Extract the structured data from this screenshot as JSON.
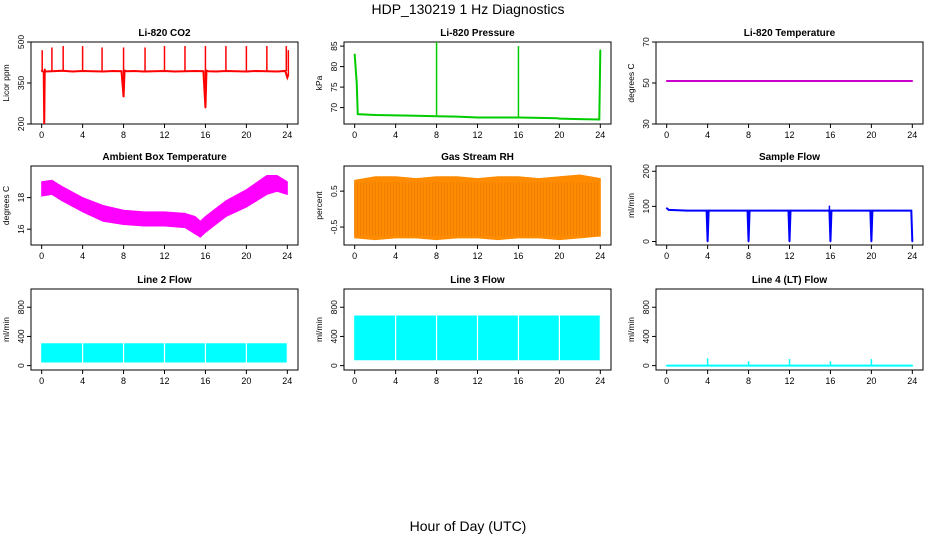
{
  "figure": {
    "title": "HDP_130219  1 Hz Diagnostics",
    "xlabel": "Hour of Day (UTC)"
  },
  "chart_data": [
    {
      "type": "line",
      "title": "Li-820 CO2",
      "xlabel": "",
      "ylabel": "Licor ppm",
      "color": "#ff0000",
      "xlim": [
        0,
        24
      ],
      "xticks": [
        0,
        4,
        8,
        12,
        16,
        20,
        24
      ],
      "ylim": [
        200,
        500
      ],
      "yticks": [
        200,
        350,
        500
      ],
      "x": [
        0,
        0.2,
        0.25,
        0.3,
        0.35,
        1,
        2,
        3,
        4,
        5,
        6,
        7,
        7.8,
        8,
        8.1,
        8.3,
        9,
        10,
        11,
        12,
        13,
        14,
        15,
        15.8,
        16,
        16.1,
        16.3,
        17,
        18,
        19,
        20,
        21,
        22,
        23,
        23.8,
        24,
        24.1
      ],
      "y": [
        395,
        390,
        200,
        400,
        392,
        393,
        395,
        392,
        394,
        393,
        392,
        394,
        393,
        300,
        395,
        393,
        394,
        392,
        393,
        394,
        392,
        393,
        394,
        393,
        260,
        395,
        393,
        392,
        394,
        393,
        392,
        394,
        393,
        392,
        394,
        370,
        380
      ],
      "spikes": [
        {
          "x": 0.05,
          "y": 470
        },
        {
          "x": 1,
          "y": 480
        },
        {
          "x": 2.1,
          "y": 485
        },
        {
          "x": 4,
          "y": 485
        },
        {
          "x": 5.9,
          "y": 480
        },
        {
          "x": 8,
          "y": 480
        },
        {
          "x": 10.1,
          "y": 480
        },
        {
          "x": 12,
          "y": 485
        },
        {
          "x": 14,
          "y": 485
        },
        {
          "x": 16,
          "y": 485
        },
        {
          "x": 18,
          "y": 485
        },
        {
          "x": 20,
          "y": 485
        },
        {
          "x": 22,
          "y": 485
        },
        {
          "x": 23.9,
          "y": 485
        },
        {
          "x": 24.1,
          "y": 470
        }
      ]
    },
    {
      "type": "line",
      "title": "Li-820 Pressure",
      "xlabel": "",
      "ylabel": "kPa",
      "color": "#00cc00",
      "xlim": [
        0,
        24
      ],
      "xticks": [
        0,
        4,
        8,
        12,
        16,
        20,
        24
      ],
      "ylim": [
        66,
        86
      ],
      "yticks": [
        70,
        75,
        80,
        85
      ],
      "x": [
        0,
        0.2,
        0.3,
        2,
        4,
        6,
        8,
        10,
        12,
        14,
        16,
        18,
        19.8,
        20,
        22,
        23.9,
        24
      ],
      "y": [
        83,
        76,
        68.4,
        68.2,
        68.1,
        68,
        67.9,
        67.8,
        67.6,
        67.6,
        67.6,
        67.5,
        67.4,
        67.3,
        67.2,
        67.1,
        84
      ],
      "spikes": [
        {
          "x": 8,
          "y": 86
        },
        {
          "x": 16,
          "y": 85
        }
      ]
    },
    {
      "type": "line",
      "title": "Li-820 Temperature",
      "xlabel": "",
      "ylabel": "degrees C",
      "color": "#cc00cc",
      "xlim": [
        0,
        24
      ],
      "xticks": [
        0,
        4,
        8,
        12,
        16,
        20,
        24
      ],
      "ylim": [
        30,
        70
      ],
      "yticks": [
        30,
        50,
        70
      ],
      "x": [
        0,
        24
      ],
      "y": [
        51,
        51
      ]
    },
    {
      "type": "area",
      "title": "Ambient Box Temperature",
      "xlabel": "",
      "ylabel": "degrees C",
      "color": "#ff00ff",
      "xlim": [
        0,
        24
      ],
      "xticks": [
        0,
        4,
        8,
        12,
        16,
        20,
        24
      ],
      "ylim": [
        15,
        20
      ],
      "yticks": [
        16,
        18
      ],
      "x": [
        0,
        1,
        2,
        4,
        6,
        8,
        10,
        12,
        14,
        15,
        15.5,
        16,
        17,
        18,
        20,
        22,
        23,
        24
      ],
      "upper": [
        19,
        19.1,
        18.7,
        18,
        17.5,
        17.2,
        17.1,
        17.1,
        17,
        16.8,
        16.5,
        16.8,
        17.3,
        17.8,
        18.5,
        19.4,
        19.4,
        19
      ],
      "lower": [
        18.1,
        18.2,
        17.8,
        17.1,
        16.5,
        16.3,
        16.2,
        16.2,
        16.1,
        15.7,
        15.5,
        15.8,
        16.3,
        16.8,
        17.4,
        18.2,
        18.4,
        18.2
      ]
    },
    {
      "type": "area",
      "title": "Gas Stream RH",
      "xlabel": "",
      "ylabel": "percent",
      "color": "#ff8c00",
      "xlim": [
        0,
        24
      ],
      "xticks": [
        0,
        4,
        8,
        12,
        16,
        20,
        24
      ],
      "ylim": [
        -1,
        1.2
      ],
      "yticks": [
        -0.5,
        0.5
      ],
      "x": [
        0,
        2,
        4,
        6,
        8,
        10,
        12,
        14,
        16,
        18,
        20,
        22,
        24
      ],
      "upper": [
        0.8,
        0.9,
        0.9,
        0.85,
        0.9,
        0.9,
        0.85,
        0.9,
        0.9,
        0.85,
        0.9,
        0.95,
        0.85
      ],
      "lower": [
        -0.8,
        -0.85,
        -0.8,
        -0.8,
        -0.85,
        -0.8,
        -0.8,
        -0.85,
        -0.8,
        -0.8,
        -0.85,
        -0.8,
        -0.75
      ],
      "hatch": "#cc6600"
    },
    {
      "type": "line",
      "title": "Sample Flow",
      "xlabel": "",
      "ylabel": "ml/min",
      "color": "#0000ff",
      "xlim": [
        0,
        24
      ],
      "xticks": [
        0,
        4,
        8,
        12,
        16,
        20,
        24
      ],
      "ylim": [
        -10,
        215
      ],
      "yticks": [
        0,
        100,
        200
      ],
      "x": [
        0,
        0.2,
        2,
        3.9,
        4,
        4.1,
        6,
        7.9,
        8,
        8.1,
        10,
        11.9,
        12,
        12.1,
        14,
        15.9,
        16,
        16.1,
        18,
        19.9,
        20,
        20.1,
        22,
        23.9,
        24
      ],
      "y": [
        95,
        90,
        88,
        88,
        0,
        88,
        88,
        88,
        0,
        88,
        88,
        88,
        0,
        88,
        88,
        88,
        0,
        88,
        88,
        88,
        0,
        88,
        88,
        88,
        0
      ],
      "spikes": [
        {
          "x": 15.9,
          "y": 102
        }
      ]
    },
    {
      "type": "area",
      "title": "Line 2 Flow",
      "xlabel": "",
      "ylabel": "ml/min",
      "color": "#00ffff",
      "xlim": [
        0,
        24
      ],
      "xticks": [
        0,
        4,
        8,
        12,
        16,
        20,
        24
      ],
      "ylim": [
        -60,
        1050
      ],
      "yticks": [
        0,
        400,
        800
      ],
      "x": [
        0,
        24
      ],
      "upper": [
        300,
        300
      ],
      "lower": [
        50,
        50
      ],
      "gaps": [
        4,
        8,
        12,
        16,
        20,
        24
      ]
    },
    {
      "type": "area",
      "title": "Line 3 Flow",
      "xlabel": "",
      "ylabel": "ml/min",
      "color": "#00ffff",
      "xlim": [
        0,
        24
      ],
      "xticks": [
        0,
        4,
        8,
        12,
        16,
        20,
        24
      ],
      "ylim": [
        -60,
        1050
      ],
      "yticks": [
        0,
        400,
        800
      ],
      "x": [
        0,
        24
      ],
      "upper": [
        680,
        680
      ],
      "lower": [
        80,
        80
      ],
      "gaps": [
        4,
        8,
        12,
        16,
        20,
        24
      ]
    },
    {
      "type": "line",
      "title": "Line 4 (LT) Flow",
      "xlabel": "",
      "ylabel": "ml/min",
      "color": "#00ffff",
      "xlim": [
        0,
        24
      ],
      "xticks": [
        0,
        4,
        8,
        12,
        16,
        20,
        24
      ],
      "ylim": [
        -60,
        1050
      ],
      "yticks": [
        0,
        400,
        800
      ],
      "x": [
        0,
        24
      ],
      "y": [
        0,
        0
      ],
      "spikes": [
        {
          "x": 4,
          "y": 100
        },
        {
          "x": 8,
          "y": 60
        },
        {
          "x": 12,
          "y": 90
        },
        {
          "x": 16,
          "y": 60
        },
        {
          "x": 20,
          "y": 90
        }
      ]
    }
  ]
}
